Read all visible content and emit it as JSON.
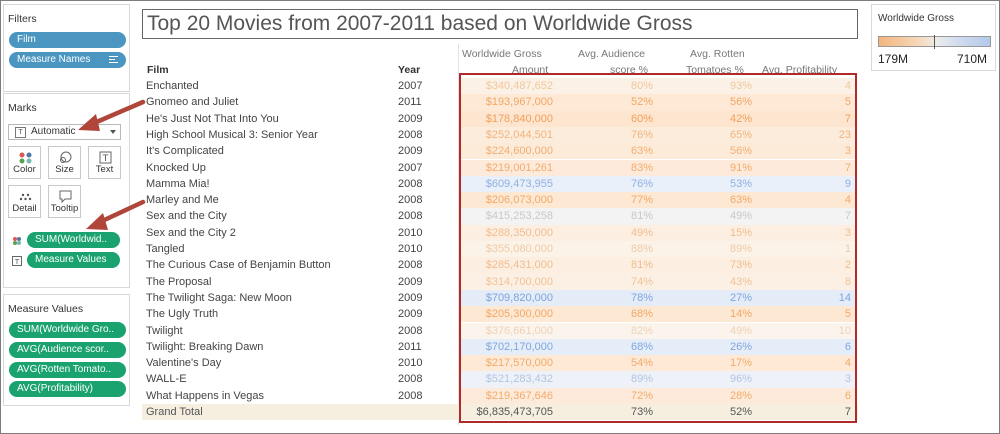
{
  "filters": {
    "title": "Filters",
    "pills": [
      "Film",
      "Measure Names"
    ]
  },
  "marks": {
    "title": "Marks",
    "mark_type": "Automatic",
    "buttons": [
      "Color",
      "Size",
      "Text",
      "Detail",
      "Tooltip"
    ],
    "pills": [
      "SUM(Worldwid..",
      "Measure Values"
    ]
  },
  "measure_values": {
    "title": "Measure Values",
    "pills": [
      "SUM(Worldwide Gro..",
      "AVG(Audience scor..",
      "AVG(Rotten Tomato..",
      "AVG(Profitability)"
    ]
  },
  "view": {
    "title": "Top 20 Movies from 2007-2011 based on Worldwide Gross",
    "headers": {
      "film": "Film",
      "year": "Year",
      "gross_line1": "Worldwide Gross",
      "gross_line2": "Amount",
      "aud_line1": "Avg. Audience",
      "aud_line2": "score %",
      "rot_line1": "Avg. Rotten",
      "rot_line2": "Tomatoes %",
      "prof": "Avg. Profitability"
    },
    "rows": [
      {
        "film": "Enchanted",
        "year": "2007",
        "gross": "$340,487,652",
        "aud": "80%",
        "rot": "93%",
        "prof": "4",
        "color": "#f0c79b",
        "band": "#fbf1e6"
      },
      {
        "film": "Gnomeo and Juliet",
        "year": "2011",
        "gross": "$193,967,000",
        "aud": "52%",
        "rot": "56%",
        "prof": "5",
        "color": "#f2a764",
        "band": "#fde9d6"
      },
      {
        "film": "He's Just Not That Into You",
        "year": "2009",
        "gross": "$178,840,000",
        "aud": "60%",
        "rot": "42%",
        "prof": "7",
        "color": "#f2a05a",
        "band": "#fde5cf"
      },
      {
        "film": "High School Musical 3: Senior Year",
        "year": "2008",
        "gross": "$252,044,501",
        "aud": "76%",
        "rot": "65%",
        "prof": "23",
        "color": "#f1b47c",
        "band": "#fcecdc"
      },
      {
        "film": "It's Complicated",
        "year": "2009",
        "gross": "$224,600,000",
        "aud": "63%",
        "rot": "56%",
        "prof": "3",
        "color": "#f1ae72",
        "band": "#fdebd9"
      },
      {
        "film": "Knocked Up",
        "year": "2007",
        "gross": "$219,001,261",
        "aud": "83%",
        "rot": "91%",
        "prof": "7",
        "color": "#f1ac6d",
        "band": "#fdeada"
      },
      {
        "film": "Mamma Mia!",
        "year": "2008",
        "gross": "$609,473,955",
        "aud": "76%",
        "rot": "53%",
        "prof": "9",
        "color": "#8fb0e0",
        "band": "#e9f0fa"
      },
      {
        "film": "Marley and Me",
        "year": "2008",
        "gross": "$206,073,000",
        "aud": "77%",
        "rot": "63%",
        "prof": "4",
        "color": "#f1a967",
        "band": "#fde8d4"
      },
      {
        "film": "Sex and the City",
        "year": "2008",
        "gross": "$415,253,258",
        "aud": "81%",
        "rot": "49%",
        "prof": "7",
        "color": "#c8c8c8",
        "band": "#f3f3f3"
      },
      {
        "film": "Sex and the City 2",
        "year": "2010",
        "gross": "$288,350,000",
        "aud": "49%",
        "rot": "15%",
        "prof": "3",
        "color": "#f1bd8e",
        "band": "#fcefe2"
      },
      {
        "film": "Tangled",
        "year": "2010",
        "gross": "$355,080,000",
        "aud": "88%",
        "rot": "89%",
        "prof": "1",
        "color": "#f0cba6",
        "band": "#fbf2e8"
      },
      {
        "film": "The Curious Case of Benjamin Button",
        "year": "2008",
        "gross": "$285,431,000",
        "aud": "81%",
        "rot": "73%",
        "prof": "2",
        "color": "#f1bc8c",
        "band": "#fcefe2"
      },
      {
        "film": "The Proposal",
        "year": "2009",
        "gross": "$314,700,000",
        "aud": "74%",
        "rot": "43%",
        "prof": "8",
        "color": "#f0c297",
        "band": "#fcf0e4"
      },
      {
        "film": "The Twilight Saga: New Moon",
        "year": "2009",
        "gross": "$709,820,000",
        "aud": "78%",
        "rot": "27%",
        "prof": "14",
        "color": "#7ea4dc",
        "band": "#e4ecf8"
      },
      {
        "film": "The Ugly Truth",
        "year": "2009",
        "gross": "$205,300,000",
        "aud": "68%",
        "rot": "14%",
        "prof": "5",
        "color": "#f1a967",
        "band": "#fde8d4"
      },
      {
        "film": "Twilight",
        "year": "2008",
        "gross": "$376,661,000",
        "aud": "82%",
        "rot": "49%",
        "prof": "10",
        "color": "#efd2b5",
        "band": "#fbf4ec"
      },
      {
        "film": "Twilight: Breaking Dawn",
        "year": "2011",
        "gross": "$702,170,000",
        "aud": "68%",
        "rot": "26%",
        "prof": "6",
        "color": "#80a6dc",
        "band": "#e5edf9"
      },
      {
        "film": "Valentine's Day",
        "year": "2010",
        "gross": "$217,570,000",
        "aud": "54%",
        "rot": "17%",
        "prof": "4",
        "color": "#f1ab6b",
        "band": "#fde9d6"
      },
      {
        "film": "WALL-E",
        "year": "2008",
        "gross": "$521,283,432",
        "aud": "89%",
        "rot": "96%",
        "prof": "3",
        "color": "#b1c4e3",
        "band": "#eef2f8"
      },
      {
        "film": "What Happens in Vegas",
        "year": "2008",
        "gross": "$219,367,646",
        "aud": "72%",
        "rot": "28%",
        "prof": "6",
        "color": "#f1ac6d",
        "band": "#fdeada"
      }
    ],
    "total": {
      "film": "Grand Total",
      "gross": "$6,835,473,705",
      "aud": "73%",
      "rot": "52%",
      "prof": "7"
    }
  },
  "legend": {
    "title": "Worldwide Gross",
    "min": "179M",
    "max": "710M"
  },
  "colors": {
    "filter_pill": "#4a96c0",
    "measure_pill": "#1aa36f",
    "highlight_box": "#b02a2a",
    "annotation_arrow": "#b0463a"
  }
}
